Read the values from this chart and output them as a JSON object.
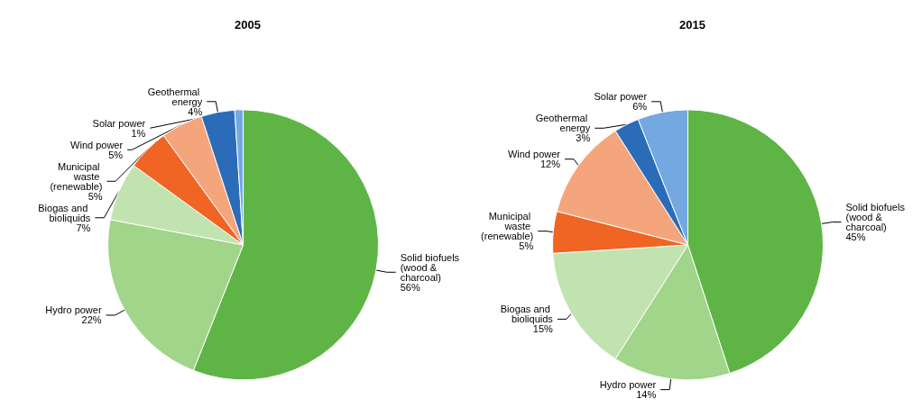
{
  "chart_data": [
    {
      "type": "pie",
      "title": "2005",
      "categories": [
        "Solid biofuels (wood & charcoal)",
        "Hydro power",
        "Biogas and bioliquids",
        "Municipal waste (renewable)",
        "Wind power",
        "Geothermal energy",
        "Solar power"
      ],
      "values": [
        56,
        22,
        7,
        5,
        5,
        4,
        1
      ],
      "value_labels": [
        "56%",
        "22%",
        "7%",
        "5%",
        "5%",
        "4%",
        "1%"
      ],
      "colors": [
        "#5fb446",
        "#a0d58a",
        "#c1e3b0",
        "#f06424",
        "#f5a57c",
        "#2b6cb8",
        "#74a8e0"
      ],
      "legend": false
    },
    {
      "type": "pie",
      "title": "2015",
      "categories": [
        "Solid biofuels (wood & charcoal)",
        "Hydro power",
        "Biogas and bioliquids",
        "Municipal waste (renewable)",
        "Wind power",
        "Geothermal energy",
        "Solar power"
      ],
      "values": [
        45,
        14,
        15,
        5,
        12,
        3,
        6
      ],
      "value_labels": [
        "45%",
        "14%",
        "15%",
        "5%",
        "12%",
        "3%",
        "6%"
      ],
      "colors": [
        "#5fb446",
        "#a0d58a",
        "#c1e3b0",
        "#f06424",
        "#f5a57c",
        "#2b6cb8",
        "#74a8e0"
      ],
      "legend": false
    }
  ]
}
